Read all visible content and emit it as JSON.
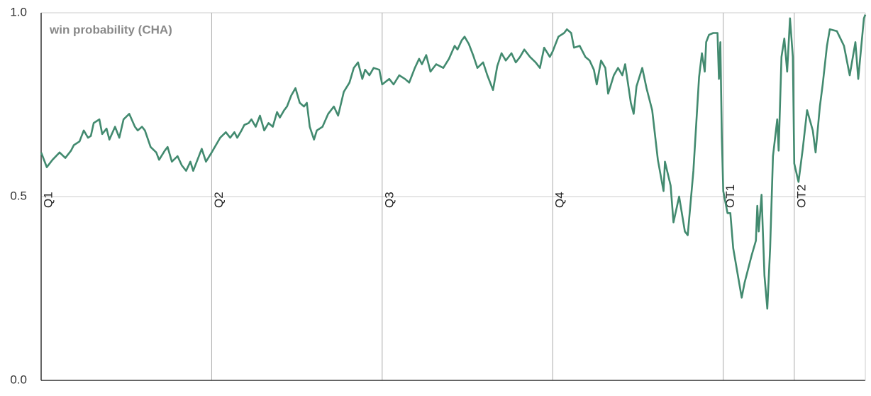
{
  "chart_data": {
    "type": "line",
    "title": "win probability (CHA)",
    "color": "#428a6f",
    "xlim": [
      0,
      58
    ],
    "ylim": [
      0,
      1
    ],
    "xticks": [
      {
        "value": 0,
        "label": "Q1"
      },
      {
        "value": 12,
        "label": "Q2"
      },
      {
        "value": 24,
        "label": "Q3"
      },
      {
        "value": 36,
        "label": "Q4"
      },
      {
        "value": 48,
        "label": "OT1"
      },
      {
        "value": 53,
        "label": "OT2"
      }
    ],
    "yticks": [
      {
        "value": 0,
        "label": "0.0"
      },
      {
        "value": 0.5,
        "label": "0.5"
      },
      {
        "value": 1,
        "label": "1.0"
      }
    ],
    "grid": true,
    "x": [
      0,
      0.1,
      0.4,
      0.8,
      1.3,
      1.7,
      2.1,
      2.3,
      2.7,
      3.0,
      3.3,
      3.5,
      3.7,
      4.1,
      4.3,
      4.6,
      4.8,
      5.2,
      5.5,
      5.8,
      6.2,
      6.6,
      6.8,
      7.1,
      7.3,
      7.7,
      8.1,
      8.3,
      8.7,
      8.9,
      9.2,
      9.6,
      9.9,
      10.2,
      10.5,
      10.7,
      11.0,
      11.3,
      11.6,
      12.0,
      12.6,
      13.0,
      13.3,
      13.6,
      13.8,
      14.1,
      14.3,
      14.6,
      14.8,
      15.1,
      15.4,
      15.7,
      16.0,
      16.3,
      16.6,
      16.8,
      17.1,
      17.3,
      17.6,
      17.9,
      18.2,
      18.5,
      18.7,
      18.9,
      19.2,
      19.4,
      19.8,
      20.2,
      20.6,
      20.9,
      21.3,
      21.7,
      22.0,
      22.3,
      22.6,
      22.8,
      23.1,
      23.4,
      23.8,
      24.0,
      24.5,
      24.8,
      25.2,
      25.6,
      25.9,
      26.3,
      26.6,
      26.8,
      27.1,
      27.4,
      27.8,
      28.3,
      28.7,
      29.1,
      29.3,
      29.6,
      29.8,
      30.1,
      30.4,
      30.7,
      31.1,
      31.4,
      31.8,
      32.1,
      32.4,
      32.7,
      33.1,
      33.4,
      33.7,
      34.0,
      34.4,
      34.8,
      35.1,
      35.4,
      35.8,
      36.0,
      36.4,
      36.8,
      37.0,
      37.3,
      37.5,
      37.9,
      38.3,
      38.6,
      38.9,
      39.1,
      39.4,
      39.7,
      39.9,
      40.3,
      40.6,
      40.9,
      41.1,
      41.5,
      41.7,
      41.9,
      42.3,
      42.6,
      43.0,
      43.4,
      43.8,
      43.9,
      44.3,
      44.5,
      44.9,
      45.3,
      45.5,
      45.9,
      46.3,
      46.5,
      46.7,
      46.8,
      47.0,
      47.3,
      47.6,
      47.7,
      47.8,
      47.9,
      48.0,
      48.3,
      48.5,
      48.7,
      49.3,
      49.5,
      50.0,
      50.3,
      50.4,
      50.5,
      50.7,
      50.9,
      51.1,
      51.3,
      51.5,
      51.8,
      51.9,
      52.1,
      52.3,
      52.5,
      52.7,
      52.9,
      53.0,
      53.3,
      53.6,
      53.9,
      54.3,
      54.5,
      54.8,
      55.0,
      55.3,
      55.5,
      56.0,
      56.5,
      56.9,
      57.3,
      57.5,
      57.9,
      58.0
    ],
    "values": [
      0.62,
      0.61,
      0.58,
      0.6,
      0.62,
      0.605,
      0.625,
      0.64,
      0.65,
      0.68,
      0.66,
      0.665,
      0.7,
      0.71,
      0.67,
      0.685,
      0.655,
      0.69,
      0.66,
      0.71,
      0.725,
      0.69,
      0.68,
      0.69,
      0.68,
      0.635,
      0.62,
      0.6,
      0.625,
      0.635,
      0.595,
      0.61,
      0.585,
      0.57,
      0.595,
      0.57,
      0.6,
      0.63,
      0.595,
      0.62,
      0.66,
      0.675,
      0.66,
      0.675,
      0.66,
      0.68,
      0.695,
      0.7,
      0.71,
      0.69,
      0.72,
      0.68,
      0.7,
      0.69,
      0.73,
      0.715,
      0.735,
      0.745,
      0.775,
      0.795,
      0.755,
      0.745,
      0.755,
      0.69,
      0.655,
      0.68,
      0.69,
      0.725,
      0.745,
      0.72,
      0.785,
      0.81,
      0.85,
      0.865,
      0.82,
      0.845,
      0.83,
      0.85,
      0.845,
      0.805,
      0.82,
      0.805,
      0.83,
      0.82,
      0.81,
      0.85,
      0.875,
      0.86,
      0.885,
      0.84,
      0.86,
      0.85,
      0.875,
      0.91,
      0.9,
      0.925,
      0.935,
      0.915,
      0.885,
      0.85,
      0.865,
      0.83,
      0.79,
      0.855,
      0.89,
      0.87,
      0.89,
      0.865,
      0.88,
      0.9,
      0.88,
      0.865,
      0.85,
      0.905,
      0.88,
      0.895,
      0.935,
      0.945,
      0.955,
      0.945,
      0.905,
      0.91,
      0.88,
      0.87,
      0.845,
      0.805,
      0.87,
      0.85,
      0.78,
      0.83,
      0.85,
      0.83,
      0.86,
      0.755,
      0.725,
      0.8,
      0.85,
      0.795,
      0.735,
      0.6,
      0.515,
      0.595,
      0.53,
      0.43,
      0.5,
      0.405,
      0.395,
      0.57,
      0.825,
      0.89,
      0.84,
      0.92,
      0.94,
      0.945,
      0.945,
      0.82,
      0.92,
      0.66,
      0.515,
      0.455,
      0.455,
      0.36,
      0.225,
      0.265,
      0.34,
      0.38,
      0.475,
      0.405,
      0.505,
      0.285,
      0.195,
      0.36,
      0.61,
      0.71,
      0.625,
      0.88,
      0.93,
      0.84,
      0.985,
      0.88,
      0.59,
      0.54,
      0.63,
      0.735,
      0.68,
      0.62,
      0.745,
      0.805,
      0.91,
      0.955,
      0.95,
      0.91,
      0.83,
      0.92,
      0.82,
      0.985,
      0.995
    ]
  }
}
